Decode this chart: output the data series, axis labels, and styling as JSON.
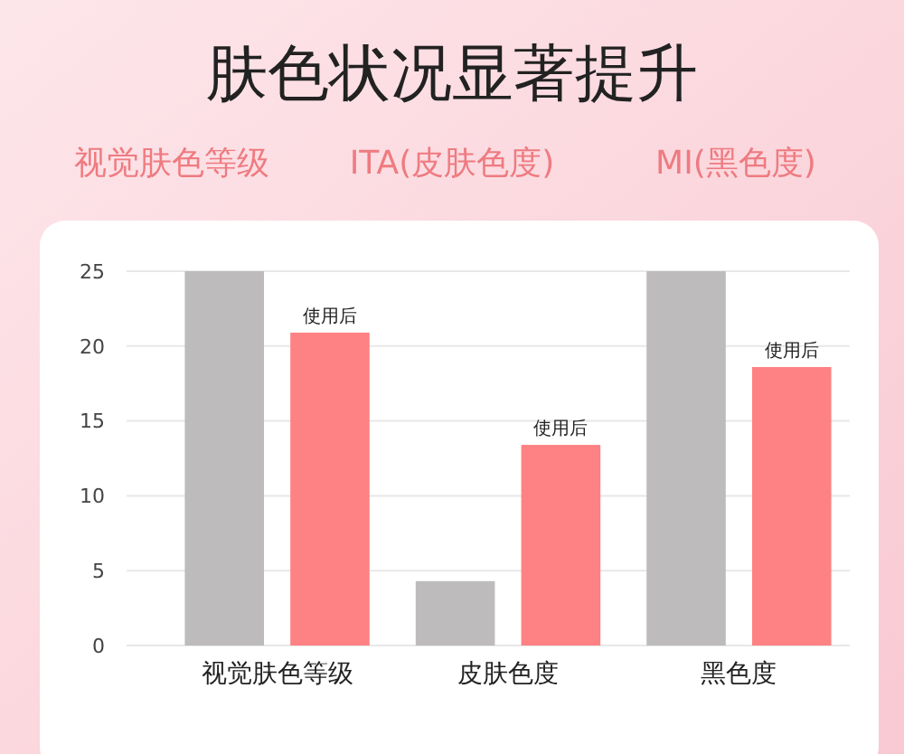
{
  "chart_data": {
    "type": "bar",
    "title": "肤色状况显著提升",
    "categories": [
      "视觉肤色等级",
      "皮肤色度",
      "黑色度"
    ],
    "series": [
      {
        "color": "#bdbbbb",
        "values": [
          25,
          4.3,
          25
        ]
      },
      {
        "color": "#fe8183",
        "values": [
          20.9,
          13.4,
          18.6
        ],
        "value_labels": [
          "使用后",
          "使用后",
          "使用后"
        ]
      }
    ],
    "ylim": [
      0,
      25
    ],
    "yticks": [
      0,
      5,
      10,
      15,
      20,
      25
    ],
    "grid": "y",
    "annotations": [
      "视觉肤色等级",
      "ITA(皮肤色度)",
      "MI(黑色度)"
    ]
  }
}
